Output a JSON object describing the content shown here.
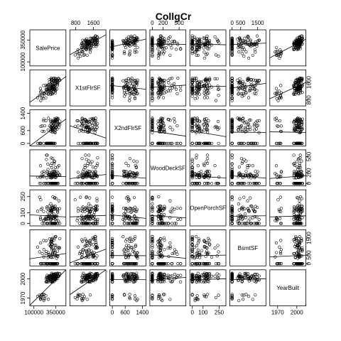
{
  "chart_data": {
    "type": "scatter-matrix",
    "title": "CollgCr",
    "variables": [
      {
        "name": "SalePrice",
        "range": [
          70000,
          450000
        ],
        "ticks": [
          100000,
          350000
        ],
        "tick_labels": [
          "100000",
          "350000"
        ],
        "seed": 11
      },
      {
        "name": "X1stFlrSF",
        "range": [
          600,
          2100
        ],
        "ticks": [
          800,
          1600
        ],
        "tick_labels": [
          "800",
          "1600"
        ],
        "seed": 23
      },
      {
        "name": "X2ndFlrSF",
        "range": [
          -50,
          1500
        ],
        "ticks": [
          0,
          600,
          1400
        ],
        "tick_labels": [
          "0",
          "600",
          "1400"
        ],
        "seed": 37
      },
      {
        "name": "WoodDeckSF",
        "range": [
          -20,
          600
        ],
        "ticks": [
          0,
          200,
          500
        ],
        "tick_labels": [
          "0",
          "200",
          "500"
        ],
        "seed": 41
      },
      {
        "name": "OpenPorchSF",
        "range": [
          -10,
          300
        ],
        "ticks": [
          0,
          100,
          250
        ],
        "tick_labels": [
          "0",
          "100",
          "250"
        ],
        "seed": 53
      },
      {
        "name": "BsmtSF",
        "range": [
          -50,
          1900
        ],
        "ticks": [
          0,
          500,
          1500
        ],
        "tick_labels": [
          "0",
          "500",
          "1500"
        ],
        "seed": 67
      },
      {
        "name": "YearBuilt",
        "range": [
          1960,
          2012
        ],
        "ticks": [
          1970,
          2000
        ],
        "tick_labels": [
          "1970",
          "2000"
        ],
        "seed": 79
      }
    ],
    "fit_lines": true,
    "n_points": 110
  }
}
